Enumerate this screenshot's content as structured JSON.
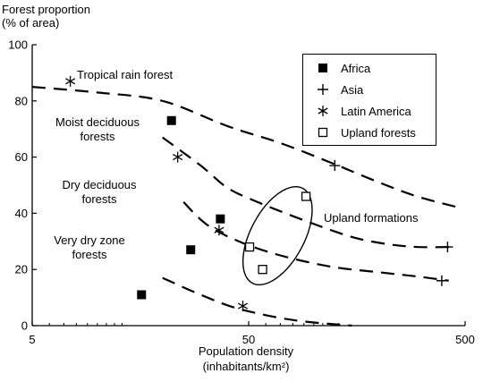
{
  "chart_data": {
    "type": "scatter",
    "ylabel_line1": "Forest proportion",
    "ylabel_line2": "(% of area)",
    "xlabel_line1": "Population density",
    "xlabel_line2": "(inhabitants/km²)",
    "x_scale": "log",
    "xlim": [
      5,
      500
    ],
    "ylim": [
      0,
      100
    ],
    "xticks": [
      5,
      50,
      500
    ],
    "xtick_labels": [
      "5",
      "50",
      "500"
    ],
    "yticks": [
      0,
      20,
      40,
      60,
      80,
      100
    ],
    "ytick_labels": [
      "0",
      "20",
      "40",
      "60",
      "80",
      "100"
    ],
    "series": [
      {
        "name": "Africa",
        "marker": "filled-square",
        "points": [
          [
            22,
            73
          ],
          [
            37,
            38
          ],
          [
            27,
            27
          ],
          [
            16,
            11
          ]
        ]
      },
      {
        "name": "Asia",
        "marker": "plus",
        "points": [
          [
            125,
            57
          ],
          [
            415,
            28
          ],
          [
            390,
            16
          ]
        ]
      },
      {
        "name": "Latin America",
        "marker": "asterisk",
        "points": [
          [
            7.5,
            87
          ],
          [
            23.5,
            60
          ],
          [
            36.5,
            34
          ],
          [
            47,
            7
          ]
        ]
      },
      {
        "name": "Upland forests",
        "marker": "open-square",
        "points": [
          [
            50.5,
            28
          ],
          [
            58,
            20
          ],
          [
            92,
            46
          ]
        ]
      }
    ],
    "curves": [
      {
        "label": "Tropical rain forest",
        "points": [
          [
            5,
            85
          ],
          [
            10,
            83
          ],
          [
            20,
            80
          ],
          [
            40,
            71
          ],
          [
            70,
            65
          ],
          [
            120,
            58
          ],
          [
            200,
            51
          ],
          [
            300,
            46
          ],
          [
            470,
            42
          ]
        ]
      },
      {
        "label": "Moist deciduous forests",
        "points": [
          [
            20,
            67
          ],
          [
            30,
            57
          ],
          [
            40,
            49
          ],
          [
            55,
            44
          ],
          [
            80,
            39
          ],
          [
            120,
            34
          ],
          [
            160,
            31
          ],
          [
            220,
            29
          ],
          [
            300,
            28
          ],
          [
            440,
            28
          ]
        ]
      },
      {
        "label": "Dry deciduous forests",
        "points": [
          [
            25,
            44
          ],
          [
            32,
            36
          ],
          [
            45,
            30
          ],
          [
            70,
            25
          ],
          [
            120,
            21
          ],
          [
            200,
            19
          ],
          [
            300,
            17.5
          ],
          [
            420,
            16
          ]
        ]
      },
      {
        "label": "Very dry zone forests",
        "points": [
          [
            20,
            17
          ],
          [
            30,
            11
          ],
          [
            45,
            6
          ],
          [
            80,
            2
          ],
          [
            150,
            0
          ]
        ]
      }
    ],
    "annotations": [
      {
        "text": "Tropical rain forest"
      },
      {
        "text": "Moist deciduous",
        "text2": "forests"
      },
      {
        "text": "Dry deciduous",
        "text2": "forests"
      },
      {
        "text": "Very dry zone",
        "text2": "forests"
      },
      {
        "text": "Upland formations"
      }
    ],
    "ellipse_label": "Upland formations",
    "legend_position": "top-right",
    "grid": false
  }
}
